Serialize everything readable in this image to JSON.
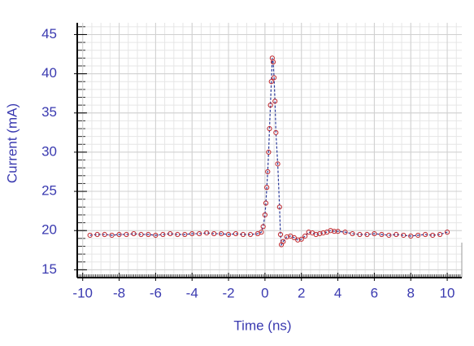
{
  "chart_data": {
    "type": "scatter-line",
    "xlabel": "Time (ns)",
    "ylabel": "Current (mA)",
    "xlim": [
      -10.3,
      10.8
    ],
    "ylim": [
      14,
      46.5
    ],
    "xticks": [
      -10,
      -8,
      -6,
      -4,
      -2,
      0,
      2,
      4,
      6,
      8,
      10
    ],
    "yticks": [
      15,
      20,
      25,
      30,
      35,
      40,
      45
    ],
    "grid": true,
    "series": [
      {
        "color": "#c0282e",
        "line_color": "#2a3a9a",
        "x": [
          -9.6,
          -9.2,
          -8.8,
          -8.4,
          -8.0,
          -7.6,
          -7.2,
          -6.8,
          -6.4,
          -6.0,
          -5.6,
          -5.2,
          -4.8,
          -4.4,
          -4.0,
          -3.6,
          -3.2,
          -2.8,
          -2.4,
          -2.0,
          -1.6,
          -1.2,
          -0.8,
          -0.4,
          -0.2,
          -0.1,
          0,
          0.05,
          0.1,
          0.15,
          0.2,
          0.25,
          0.3,
          0.35,
          0.4,
          0.45,
          0.5,
          0.55,
          0.6,
          0.7,
          0.8,
          0.85,
          0.9,
          1.0,
          1.2,
          1.4,
          1.6,
          1.8,
          2.0,
          2.2,
          2.4,
          2.6,
          2.8,
          3.0,
          3.2,
          3.4,
          3.6,
          3.8,
          4.0,
          4.4,
          4.8,
          5.2,
          5.6,
          6.0,
          6.4,
          6.8,
          7.2,
          7.6,
          8.0,
          8.4,
          8.8,
          9.2,
          9.6,
          10
        ],
        "values": [
          19.4,
          19.5,
          19.5,
          19.4,
          19.5,
          19.5,
          19.6,
          19.5,
          19.5,
          19.4,
          19.5,
          19.6,
          19.5,
          19.5,
          19.6,
          19.6,
          19.7,
          19.6,
          19.6,
          19.5,
          19.6,
          19.5,
          19.5,
          19.6,
          19.8,
          20.5,
          22,
          23.5,
          25.5,
          27.5,
          30,
          33,
          36,
          39,
          42,
          41.5,
          39.5,
          36.5,
          32.5,
          28.5,
          23,
          19.5,
          18.2,
          18.6,
          19.2,
          19.3,
          19.1,
          18.8,
          18.9,
          19.3,
          19.8,
          19.7,
          19.5,
          19.6,
          19.7,
          19.8,
          20.0,
          19.9,
          19.9,
          19.8,
          19.6,
          19.5,
          19.5,
          19.6,
          19.5,
          19.4,
          19.5,
          19.4,
          19.3,
          19.4,
          19.5,
          19.4,
          19.5,
          19.8
        ]
      }
    ]
  }
}
